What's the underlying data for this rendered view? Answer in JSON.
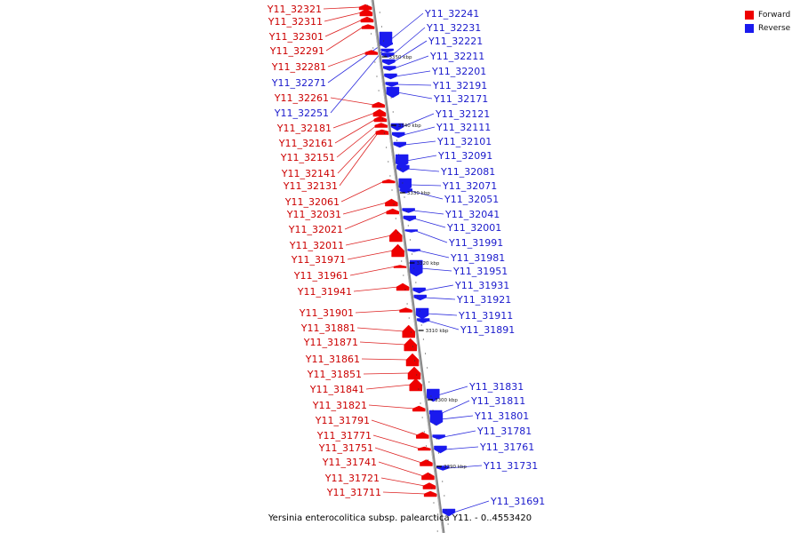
{
  "legend": {
    "forward_label": "Forward",
    "reverse_label": "Reverse",
    "forward_color": "#ee0000",
    "reverse_color": "#1a1aee"
  },
  "caption": "Yersinia enterocolitica subsp. palearctica Y11. - 0..4553420",
  "axis_ticks": [
    "3350 kbp",
    "3340 kbp",
    "3330 kbp",
    "3320 kbp",
    "3310 kbp",
    "3300 kbp",
    "3290 kbp"
  ],
  "forward_genes": [
    "Y11_32321",
    "Y11_32311",
    "Y11_32301",
    "Y11_32291",
    "Y11_32281",
    "Y11_32261",
    "Y11_32181",
    "Y11_32161",
    "Y11_32151",
    "Y11_32141",
    "Y11_32131",
    "Y11_32061",
    "Y11_32031",
    "Y11_32021",
    "Y11_32011",
    "Y11_31971",
    "Y11_31961",
    "Y11_31941",
    "Y11_31901",
    "Y11_31881",
    "Y11_31871",
    "Y11_31861",
    "Y11_31851",
    "Y11_31841",
    "Y11_31821",
    "Y11_31791",
    "Y11_31771",
    "Y11_31751",
    "Y11_31741",
    "Y11_31721",
    "Y11_31711"
  ],
  "reverse_genes": [
    "Y11_32241",
    "Y11_32231",
    "Y11_32221",
    "Y11_32211",
    "Y11_32201",
    "Y11_32191",
    "Y11_32171",
    "Y11_32121",
    "Y11_32111",
    "Y11_32101",
    "Y11_32091",
    "Y11_32081",
    "Y11_32071",
    "Y11_32051",
    "Y11_32041",
    "Y11_32001",
    "Y11_31991",
    "Y11_31981",
    "Y11_31951",
    "Y11_31931",
    "Y11_31921",
    "Y11_31911",
    "Y11_31891",
    "Y11_31831",
    "Y11_31811",
    "Y11_31801",
    "Y11_31781",
    "Y11_31761",
    "Y11_31731",
    "Y11_31691"
  ],
  "reverse_label_gene": "Y11_32271",
  "reverse_label_gene_2": "Y11_32251"
}
